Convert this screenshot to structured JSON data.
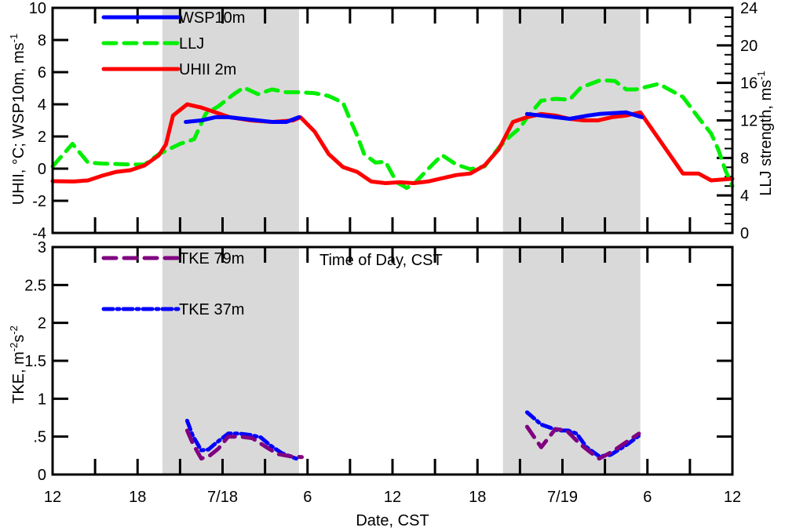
{
  "chart_data": [
    {
      "type": "line",
      "panel": "top",
      "ylabel_left": "UHII, °C; WSP10m, ms",
      "ylabel_left_sup": "-1",
      "ylabel_right": "LLJ strength, ms",
      "ylabel_right_sup": "-1",
      "ylim_left": [
        -4,
        10
      ],
      "ylim_right": [
        0,
        24
      ],
      "yticks_left": [
        "10",
        "8",
        "6",
        "4",
        "2",
        "0",
        "-2",
        "-4"
      ],
      "yticks_left_values": [
        10,
        8,
        6,
        4,
        2,
        0,
        -2,
        -4
      ],
      "yticks_right": [
        "24",
        "20",
        "16",
        "12",
        "8",
        "4",
        "0"
      ],
      "yticks_right_values": [
        24,
        20,
        16,
        12,
        8,
        4,
        0
      ],
      "annotation": "Time of Day, CST",
      "legend": [
        "WSP10m",
        "LLJ",
        "UHII 2m"
      ],
      "legend_placement": "top-left",
      "series": [
        {
          "name": "WSP10m",
          "axis": "left",
          "color": "#0000ff",
          "style": "solid",
          "segments": [
            {
              "x": [
                9.4,
                10.5,
                11.5,
                12.4,
                13.5,
                14.5,
                15.5,
                16.5,
                17.4
              ],
              "y": [
                2.9,
                3.0,
                3.2,
                3.2,
                3.1,
                3.0,
                2.9,
                2.9,
                3.2
              ]
            },
            {
              "x": [
                33.5,
                34.5,
                36.5,
                37.8,
                38.6,
                40.5,
                41.6
              ],
              "y": [
                3.4,
                3.3,
                3.1,
                3.3,
                3.4,
                3.5,
                3.2
              ]
            }
          ]
        },
        {
          "name": "LLJ",
          "axis": "right",
          "color": "#00ee00",
          "style": "dashed",
          "segments": [
            {
              "x": [
                0,
                1.4,
                2.5,
                3.5,
                5.5,
                6.5,
                7.5,
                9,
                10,
                10.8,
                11.7,
                12.8,
                13.5,
                14.5,
                15.5,
                16.5,
                17.5,
                18.5,
                19.5,
                20.5,
                21,
                21.5,
                22,
                22.8,
                23.5,
                24.3,
                25,
                25.5,
                26.5,
                27.5,
                28.5,
                29.5,
                30.5,
                31.5,
                32.3,
                33,
                33.5,
                34.5,
                35.5,
                36.5,
                37.3,
                38.7,
                39.7,
                40.5,
                41.2,
                42.8,
                44.5,
                45.6,
                46.5,
                47,
                47.5,
                48
              ],
              "y": [
                7.1,
                9.5,
                7.5,
                7.4,
                7.3,
                7.3,
                8.4,
                9.5,
                10.0,
                12.7,
                13.5,
                14.8,
                15.5,
                14.8,
                15.3,
                15.0,
                15.0,
                14.9,
                14.6,
                13.9,
                12.1,
                10.4,
                8.4,
                7.5,
                7.6,
                5.4,
                4.8,
                5.2,
                6.8,
                8.3,
                7.3,
                6.8,
                7.1,
                9.1,
                10.3,
                11.2,
                12.3,
                14.1,
                14.3,
                14.2,
                15.5,
                16.3,
                16.2,
                15.3,
                15.3,
                15.9,
                14.5,
                12.3,
                10.6,
                8.9,
                6.7,
                5.0
              ]
            }
          ]
        },
        {
          "name": "UHII 2m",
          "axis": "left",
          "color": "#ff0000",
          "style": "solid",
          "segments": [
            {
              "x": [
                0,
                1.5,
                2.5,
                3.5,
                4.5,
                5.5,
                6.5,
                7.5,
                8.0,
                8.5,
                9.5,
                10.5,
                11.5,
                12.5,
                14,
                15.5,
                17,
                17.5,
                18.5,
                19.5,
                20.5,
                21.5,
                22.5,
                23.5,
                24.5,
                25.5,
                26.5,
                27.5,
                28.5,
                29.5,
                30.5,
                31.5,
                32.5,
                33.5,
                34.5,
                35.5,
                36.5,
                37.5,
                38.5,
                39.5,
                40.5,
                41.5,
                44.5,
                45.6,
                46.5,
                48
              ],
              "y": [
                -0.78,
                -0.8,
                -0.73,
                -0.44,
                -0.2,
                -0.1,
                0.2,
                0.83,
                1.5,
                3.3,
                4.0,
                3.8,
                3.5,
                3.2,
                3.0,
                2.9,
                3.0,
                3.2,
                2.3,
                0.9,
                0.1,
                -0.2,
                -0.8,
                -0.9,
                -0.85,
                -0.9,
                -0.8,
                -0.6,
                -0.4,
                -0.3,
                0.2,
                1.2,
                2.9,
                3.2,
                3.4,
                3.3,
                3.1,
                3.0,
                3.0,
                3.2,
                3.3,
                3.5,
                -0.3,
                -0.3,
                -0.73,
                -0.63
              ]
            }
          ]
        }
      ],
      "shaded_periods_hours": [
        [
          7.75,
          17.4
        ],
        [
          31.8,
          41.5
        ]
      ],
      "shade_color": "#d9d9d9"
    },
    {
      "type": "line",
      "panel": "bottom",
      "ylabel": "TKE, m",
      "ylabel_sup1": "-2",
      "ylabel_mid": "s",
      "ylabel_sup2": "-2",
      "xlabel": "Date, CST",
      "ylim": [
        0,
        3
      ],
      "yticks": [
        "3",
        "2.5",
        "2",
        "1.5",
        "1",
        ".5",
        "0"
      ],
      "yticks_values": [
        3,
        2.5,
        2,
        1.5,
        1,
        0.5,
        0
      ],
      "xlim_hours": [
        0,
        48
      ],
      "xticks": [
        "12",
        "18",
        "7/18",
        "6",
        "12",
        "18",
        "7/19",
        "6",
        "12"
      ],
      "xticks_hours": [
        0,
        6,
        12,
        18,
        24,
        30,
        36,
        42,
        48
      ],
      "legend": [
        "TKE 79m",
        "TKE 37m"
      ],
      "legend_placement": "top-left",
      "series": [
        {
          "name": "TKE 79m",
          "color": "#800080",
          "style": "dashed",
          "segments": [
            {
              "x": [
                9.5,
                9.9,
                10.5,
                11.1,
                11.7,
                12.4,
                13.2,
                14.1,
                15.1,
                15.9,
                16.8,
                17.6
              ],
              "y": [
                0.58,
                0.41,
                0.21,
                0.25,
                0.34,
                0.5,
                0.5,
                0.48,
                0.36,
                0.27,
                0.24,
                0.23
              ]
            },
            {
              "x": [
                33.5,
                34.5,
                35.5,
                36.3,
                37.2,
                38.0,
                38.6,
                39.5,
                40.6,
                41.4
              ],
              "y": [
                0.63,
                0.36,
                0.6,
                0.58,
                0.41,
                0.29,
                0.21,
                0.3,
                0.44,
                0.54
              ]
            }
          ]
        },
        {
          "name": "TKE 37m",
          "color": "#0000ff",
          "style": "dashdot",
          "segments": [
            {
              "x": [
                9.5,
                9.9,
                10.5,
                11.0,
                11.5,
                12.4,
                13.2,
                14.0,
                14.7,
                15.4,
                16.2,
                17.2
              ],
              "y": [
                0.71,
                0.51,
                0.32,
                0.33,
                0.41,
                0.54,
                0.54,
                0.52,
                0.49,
                0.38,
                0.28,
                0.21
              ]
            },
            {
              "x": [
                33.5,
                34.5,
                35.7,
                36.4,
                37.0,
                37.7,
                38.6,
                39.4,
                40.6,
                41.6
              ],
              "y": [
                0.82,
                0.66,
                0.58,
                0.58,
                0.54,
                0.36,
                0.24,
                0.26,
                0.4,
                0.54
              ]
            }
          ]
        }
      ],
      "shaded_periods_hours": [
        [
          7.75,
          17.4
        ],
        [
          31.8,
          41.5
        ]
      ],
      "shade_color": "#d9d9d9"
    }
  ]
}
